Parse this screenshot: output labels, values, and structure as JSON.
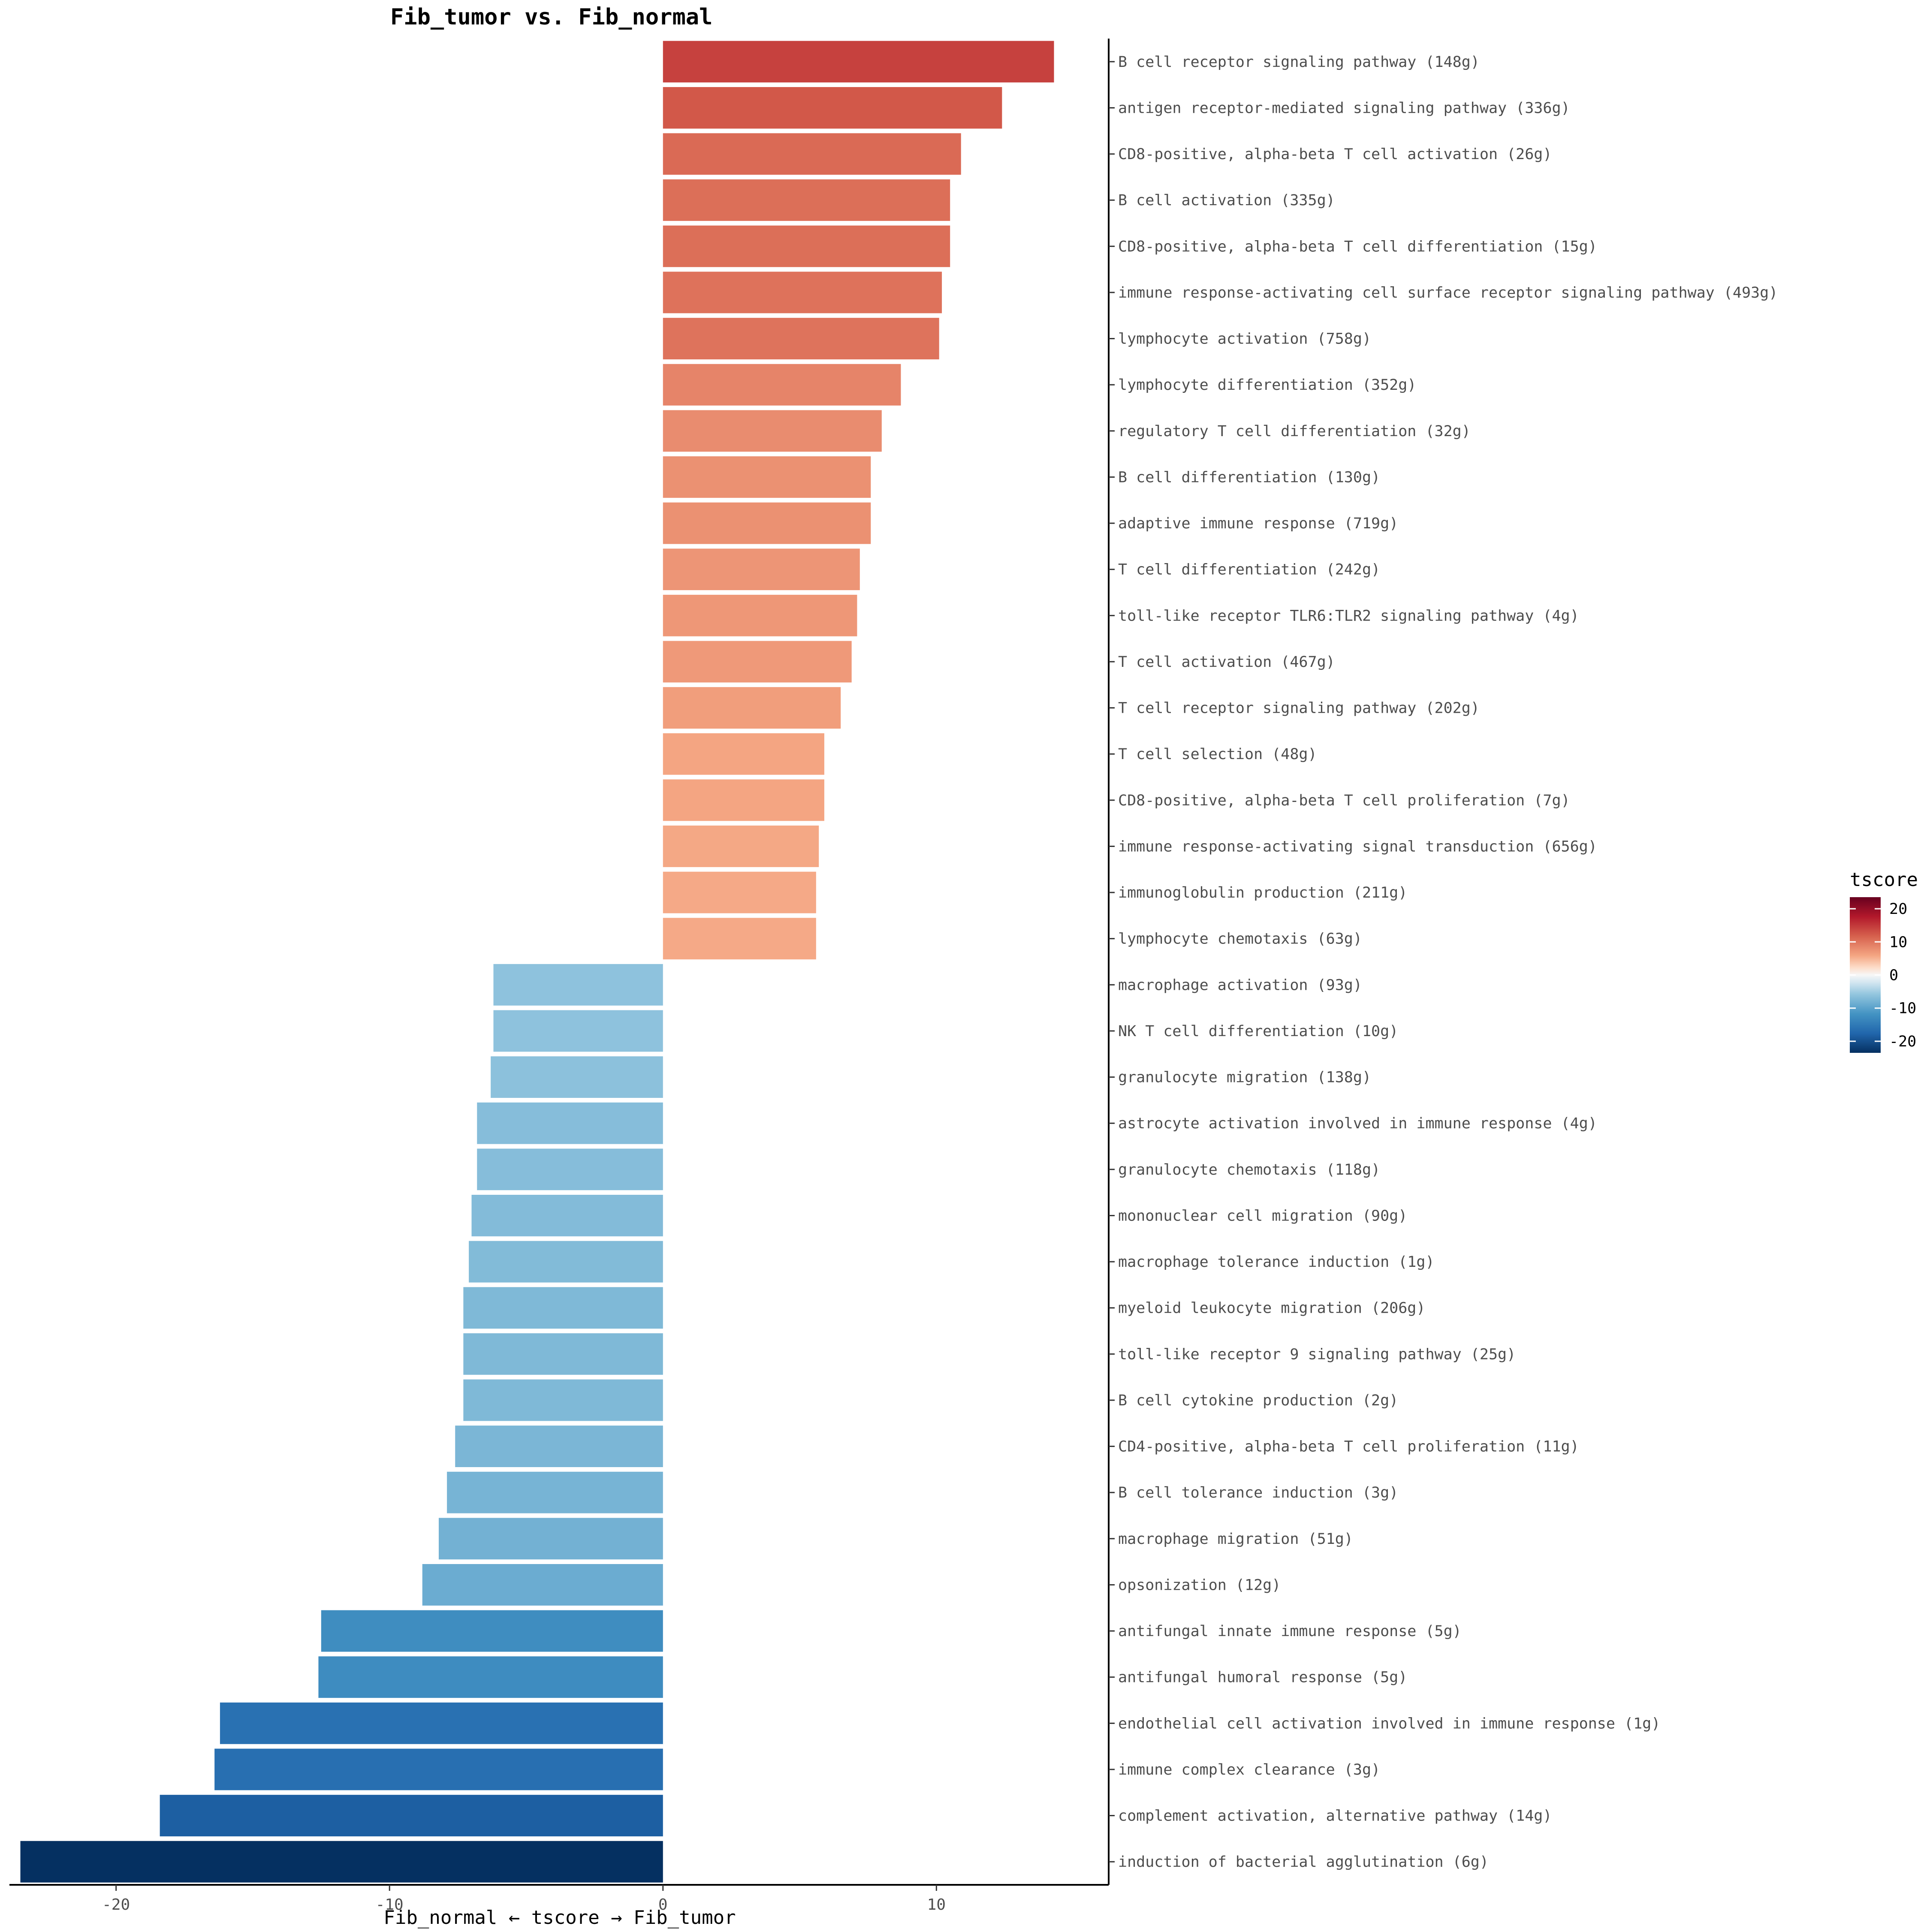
{
  "chart_data": {
    "type": "bar",
    "orientation": "horizontal",
    "title": "Fib_tumor vs. Fib_normal",
    "xlabel": "Fib_normal ← tscore → Fib_tumor",
    "ylabel": "",
    "xlim": [
      -23.9,
      16.3
    ],
    "x_ticks": [
      -20,
      -10,
      0,
      10
    ],
    "grid": false,
    "legend": {
      "title": "tscore",
      "placement": "right",
      "ticks": [
        20,
        10,
        0,
        -10,
        -20
      ],
      "range": [
        -23.5,
        23.5
      ]
    },
    "categories": [
      "B cell receptor signaling pathway (148g)",
      "antigen receptor-mediated signaling pathway (336g)",
      "CD8-positive, alpha-beta T cell activation (26g)",
      "B cell activation (335g)",
      "CD8-positive, alpha-beta T cell differentiation (15g)",
      "immune response-activating cell surface receptor signaling pathway (493g)",
      "lymphocyte activation (758g)",
      "lymphocyte differentiation (352g)",
      "regulatory T cell differentiation (32g)",
      "B cell differentiation (130g)",
      "adaptive immune response (719g)",
      "T cell differentiation (242g)",
      "toll-like receptor TLR6:TLR2 signaling pathway (4g)",
      "T cell activation (467g)",
      "T cell receptor signaling pathway (202g)",
      "T cell selection (48g)",
      "CD8-positive, alpha-beta T cell proliferation (7g)",
      "immune response-activating signal transduction (656g)",
      "immunoglobulin production (211g)",
      "lymphocyte chemotaxis (63g)",
      "macrophage activation (93g)",
      "NK T cell differentiation (10g)",
      "granulocyte migration (138g)",
      "astrocyte activation involved in immune response (4g)",
      "granulocyte chemotaxis (118g)",
      "mononuclear cell migration (90g)",
      "macrophage tolerance induction (1g)",
      "myeloid leukocyte migration (206g)",
      "toll-like receptor 9 signaling pathway (25g)",
      "B cell cytokine production (2g)",
      "CD4-positive, alpha-beta T cell proliferation (11g)",
      "B cell tolerance induction (3g)",
      "macrophage migration (51g)",
      "opsonization (12g)",
      "antifungal innate immune response (5g)",
      "antifungal humoral response (5g)",
      "endothelial cell activation involved in immune response (1g)",
      "immune complex clearance (3g)",
      "complement activation, alternative pathway (14g)",
      "induction of bacterial agglutination (6g)"
    ],
    "values": [
      14.3,
      12.4,
      10.9,
      10.5,
      10.5,
      10.2,
      10.1,
      8.7,
      8.0,
      7.6,
      7.6,
      7.2,
      7.1,
      6.9,
      6.5,
      5.9,
      5.9,
      5.7,
      5.6,
      5.6,
      -6.2,
      -6.2,
      -6.3,
      -6.8,
      -6.8,
      -7.0,
      -7.1,
      -7.3,
      -7.3,
      -7.3,
      -7.6,
      -7.9,
      -8.2,
      -8.8,
      -12.5,
      -12.6,
      -16.2,
      -16.4,
      -18.4,
      -23.5
    ]
  }
}
